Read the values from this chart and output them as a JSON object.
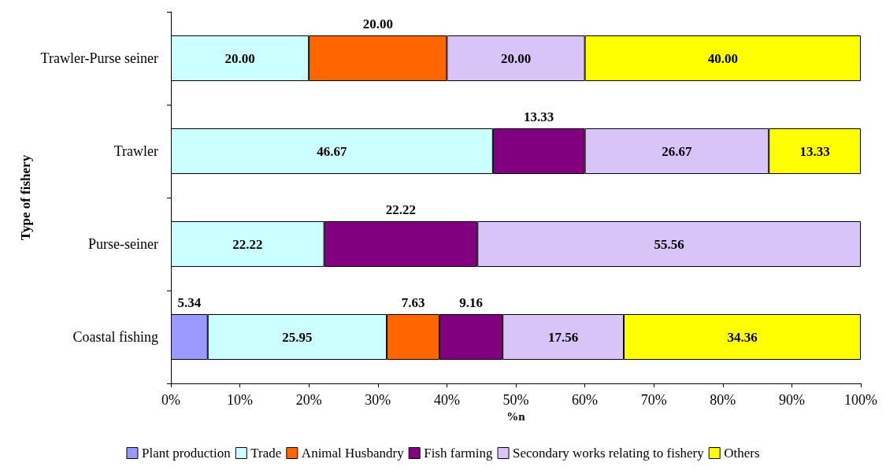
{
  "chart_data": {
    "type": "bar",
    "orientation": "horizontal",
    "stacked": true,
    "xlabel": "%n",
    "ylabel": "Type of fishery",
    "categories": [
      "Trawler-Purse seiner",
      "Trawler",
      "Purse-seiner",
      "Coastal fishing"
    ],
    "series": [
      {
        "name": "Plant production",
        "color": "#9999ff",
        "values": [
          null,
          null,
          null,
          5.34
        ],
        "value_labels": [
          null,
          null,
          null,
          "5.34"
        ]
      },
      {
        "name": "Trade",
        "color": "#ccffff",
        "values": [
          20,
          46.67,
          22.22,
          25.95
        ],
        "value_labels": [
          "20.00",
          "46.67",
          "22.22",
          "25.95"
        ]
      },
      {
        "name": "Animal Husbandry",
        "color": "#ff6600",
        "values": [
          20,
          null,
          null,
          7.63
        ],
        "value_labels": [
          "20.00",
          null,
          null,
          "7.63"
        ]
      },
      {
        "name": "Fish farming",
        "color": "#800080",
        "values": [
          null,
          13.33,
          22.22,
          9.16
        ],
        "value_labels": [
          null,
          "13.33",
          "22.22",
          "9.16"
        ]
      },
      {
        "name": "Secondary works relating to fishery",
        "color": "#d9c4f7",
        "values": [
          20,
          26.67,
          55.56,
          17.56
        ],
        "value_labels": [
          "20.00",
          "26.67",
          "55.56",
          "17.56"
        ]
      },
      {
        "name": "Others",
        "color": "#ffff00",
        "values": [
          40,
          13.33,
          null,
          34.36
        ],
        "value_labels": [
          "40.00",
          "13.33",
          null,
          "34.36"
        ]
      }
    ],
    "xlim": [
      0,
      100
    ],
    "xticks": [
      {
        "value": 0,
        "label": "0%"
      },
      {
        "value": 10,
        "label": "10%"
      },
      {
        "value": 20,
        "label": "20%"
      },
      {
        "value": 30,
        "label": "30%"
      },
      {
        "value": 40,
        "label": "40%"
      },
      {
        "value": 50,
        "label": "50%"
      },
      {
        "value": 60,
        "label": "60%"
      },
      {
        "value": 70,
        "label": "70%"
      },
      {
        "value": 80,
        "label": "80%"
      },
      {
        "value": 90,
        "label": "90%"
      },
      {
        "value": 100,
        "label": "100%"
      }
    ],
    "grid": false,
    "legend": "bottom"
  }
}
